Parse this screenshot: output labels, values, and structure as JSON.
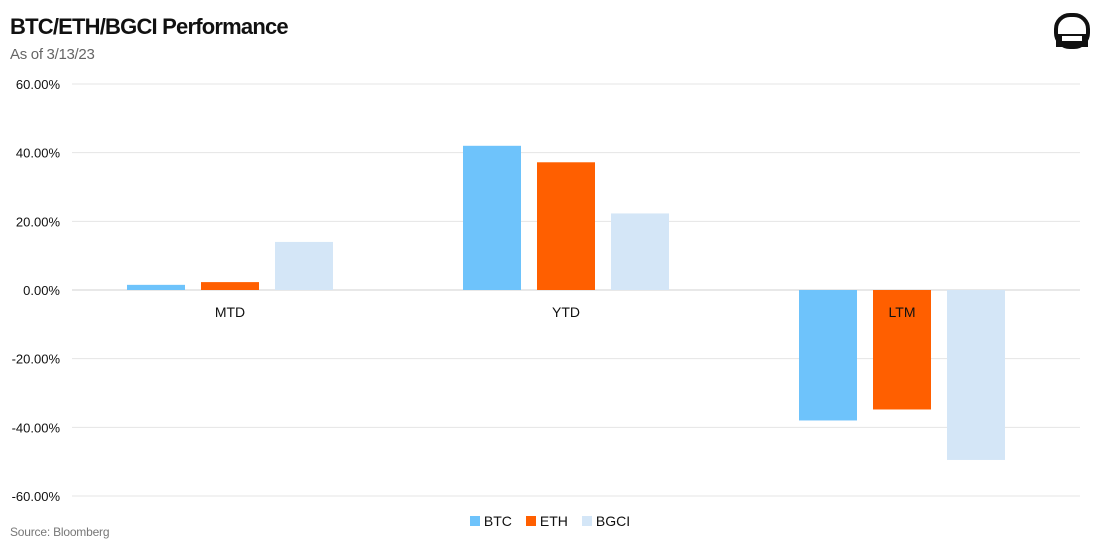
{
  "header": {
    "title": "BTC/ETH/BGCI Performance",
    "subtitle": "As of 3/13/23"
  },
  "footer": {
    "source": "Source: Bloomberg"
  },
  "logo": {
    "icon": "rounded-square-logo-icon"
  },
  "chart_data": {
    "type": "bar",
    "categories": [
      "MTD",
      "YTD",
      "LTM"
    ],
    "series": [
      {
        "name": "BTC",
        "color": "#6ec3fb",
        "values": [
          1.5,
          42.0,
          -38.0
        ]
      },
      {
        "name": "ETH",
        "color": "#ff5f00",
        "values": [
          2.3,
          37.2,
          -34.8
        ]
      },
      {
        "name": "BGCI",
        "color": "#d4e6f7",
        "values": [
          14.0,
          22.3,
          -49.5
        ]
      }
    ],
    "yticks": [
      "60.00%",
      "40.00%",
      "20.00%",
      "0.00%",
      "-20.00%",
      "-40.00%",
      "-60.00%"
    ],
    "ytick_values": [
      60,
      40,
      20,
      0,
      -20,
      -40,
      -60
    ],
    "ylim": [
      -60,
      60
    ],
    "grid": true,
    "legend_position": "bottom-center",
    "xlabel": "",
    "ylabel": ""
  }
}
